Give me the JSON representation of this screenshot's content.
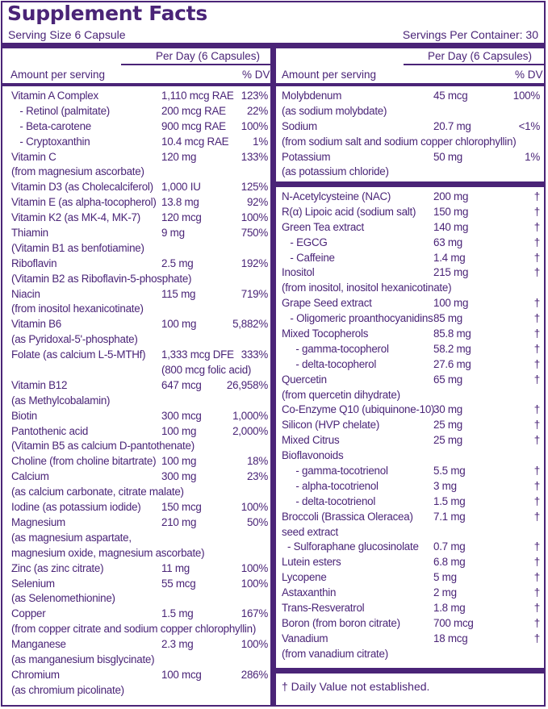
{
  "header": {
    "title": "Supplement Facts",
    "serving_size": "Serving Size 6 Capsule",
    "servings_per_container": "Servings Per Container: 30"
  },
  "columns": {
    "per_day": "Per Day (6 Capsules)",
    "amount_per_serving": "Amount per serving",
    "dv": "% DV"
  },
  "left_rows": [
    {
      "name": "Vitamin A Complex",
      "amount": "1,110 mcg RAE",
      "dv": "123%"
    },
    {
      "name": "   - Retinol (palmitate)",
      "amount": "200 mcg RAE",
      "dv": "22%"
    },
    {
      "name": "   - Beta-carotene",
      "amount": "900 mcg RAE",
      "dv": "100%"
    },
    {
      "name": "   - Cryptoxanthin",
      "amount": "10.4 mcg RAE",
      "dv": "1%"
    },
    {
      "name": "Vitamin C",
      "amount": "120 mg",
      "dv": "133%"
    },
    {
      "name": "(from magnesium ascorbate)",
      "amount": "",
      "dv": ""
    },
    {
      "name": "Vitamin D3 (as Cholecalciferol)",
      "amount": "1,000 IU",
      "dv": "125%"
    },
    {
      "name": "Vitamin E (as alpha-tocopherol)",
      "amount": "13.8 mg",
      "dv": "92%"
    },
    {
      "name": "Vitamin K2 (as MK-4, MK-7)",
      "amount": "120 mcg",
      "dv": "100%"
    },
    {
      "name": "Thiamin",
      "amount": "9 mg",
      "dv": "750%"
    },
    {
      "name": "(Vitamin B1 as benfotiamine)",
      "amount": "",
      "dv": ""
    },
    {
      "name": "Riboflavin",
      "amount": "2.5 mg",
      "dv": "192%"
    },
    {
      "name": "(Vitamin B2 as Riboflavin-5-phosphate)",
      "amount": "",
      "dv": ""
    },
    {
      "name": "Niacin",
      "amount": "115 mg",
      "dv": "719%"
    },
    {
      "name": "(from inositol hexanicotinate)",
      "amount": "",
      "dv": ""
    },
    {
      "name": "Vitamin B6",
      "amount": "100 mg",
      "dv": "5,882%"
    },
    {
      "name": "(as Pyridoxal-5'-phosphate)",
      "amount": "",
      "dv": ""
    },
    {
      "name": "Folate (as calcium L-5-MTHf)",
      "amount": "1,333 mcg DFE",
      "dv": "333%"
    },
    {
      "name": "",
      "amount": "(800 mcg folic acid)",
      "dv": ""
    },
    {
      "name": "Vitamin B12",
      "amount": "647 mcg",
      "dv": "26,958%"
    },
    {
      "name": "(as Methylcobalamin)",
      "amount": "",
      "dv": ""
    },
    {
      "name": "Biotin",
      "amount": "300 mcg",
      "dv": "1,000%"
    },
    {
      "name": "Pantothenic acid",
      "amount": "100 mg",
      "dv": "2,000%"
    },
    {
      "name": "(Vitamin B5 as calcium D-pantothenate)",
      "amount": "",
      "dv": ""
    },
    {
      "name": "Choline (from choline bitartrate)",
      "amount": "100 mg",
      "dv": "18%"
    },
    {
      "name": "Calcium",
      "amount": "300 mg",
      "dv": "23%"
    },
    {
      "name": "(as calcium carbonate, citrate malate)",
      "amount": "",
      "dv": ""
    },
    {
      "name": "Iodine (as potassium iodide)",
      "amount": "150 mcg",
      "dv": "100%"
    },
    {
      "name": "Magnesium",
      "amount": "210 mg",
      "dv": "50%"
    },
    {
      "name": "(as magnesium aspartate,",
      "amount": "",
      "dv": ""
    },
    {
      "name": "magnesium oxide, magnesium ascorbate)",
      "amount": "",
      "dv": ""
    },
    {
      "name": "Zinc (as zinc citrate)",
      "amount": "11 mg",
      "dv": "100%"
    },
    {
      "name": "Selenium",
      "amount": "55 mcg",
      "dv": "100%"
    },
    {
      "name": "(as Selenomethionine)",
      "amount": "",
      "dv": ""
    },
    {
      "name": "Copper",
      "amount": "1.5 mg",
      "dv": "167%"
    },
    {
      "name": "(from copper citrate and sodium copper chlorophyllin)",
      "amount": "",
      "dv": ""
    },
    {
      "name": "Manganese",
      "amount": "2.3 mg",
      "dv": "100%"
    },
    {
      "name": "(as manganesium bisglycinate)",
      "amount": "",
      "dv": ""
    },
    {
      "name": "Chromium",
      "amount": "100 mcg",
      "dv": "286%"
    },
    {
      "name": "(as chromium picolinate)",
      "amount": "",
      "dv": ""
    }
  ],
  "right_top_rows": [
    {
      "name": "Molybdenum",
      "amount": "45 mcg",
      "dv": "100%"
    },
    {
      "name": "(as sodium molybdate)",
      "amount": "",
      "dv": ""
    },
    {
      "name": "Sodium",
      "amount": "20.7 mg",
      "dv": "<1%"
    },
    {
      "name": "(from sodium salt and sodium copper chlorophyllin)",
      "amount": "",
      "dv": ""
    },
    {
      "name": "Potassium",
      "amount": "50 mg",
      "dv": "1%"
    },
    {
      "name": "(as potassium chloride)",
      "amount": "",
      "dv": ""
    }
  ],
  "right_bottom_rows": [
    {
      "name": "N-Acetylcysteine (NAC)",
      "amount": "200 mg",
      "dv": "†"
    },
    {
      "name": "R(α) Lipoic acid (sodium salt)",
      "amount": "150 mg",
      "dv": "†"
    },
    {
      "name": "Green Tea extract",
      "amount": "140 mg",
      "dv": "†"
    },
    {
      "name": "   - EGCG",
      "amount": "63 mg",
      "dv": "†"
    },
    {
      "name": "   - Caffeine",
      "amount": "1.4 mg",
      "dv": "†"
    },
    {
      "name": "Inositol",
      "amount": "215 mg",
      "dv": "†"
    },
    {
      "name": "(from inositol, inositol hexanicotinate)",
      "amount": "",
      "dv": ""
    },
    {
      "name": "Grape Seed extract",
      "amount": "100 mg",
      "dv": "†"
    },
    {
      "name": "   - Oligomeric proanthocyanidins",
      "amount": "85 mg",
      "dv": "†"
    },
    {
      "name": "Mixed Tocopherols",
      "amount": "85.8 mg",
      "dv": "†"
    },
    {
      "name": "     - gamma-tocopherol",
      "amount": "58.2 mg",
      "dv": "†"
    },
    {
      "name": "     - delta-tocopherol",
      "amount": "27.6 mg",
      "dv": "†"
    },
    {
      "name": "Quercetin",
      "amount": "65 mg",
      "dv": "†"
    },
    {
      "name": "(from quercetin dihydrate)",
      "amount": "",
      "dv": ""
    },
    {
      "name": "Co-Enzyme Q10 (ubiquinone-10)",
      "amount": "30 mg",
      "dv": "†"
    },
    {
      "name": "Silicon (HVP chelate)",
      "amount": "25 mg",
      "dv": "†"
    },
    {
      "name": "Mixed Citrus",
      "amount": "25 mg",
      "dv": "†"
    },
    {
      "name": "Bioflavonoids",
      "amount": "",
      "dv": ""
    },
    {
      "name": "     - gamma-tocotrienol",
      "amount": "5.5 mg",
      "dv": "†"
    },
    {
      "name": "     - alpha-tocotrienol",
      "amount": "3 mg",
      "dv": "†"
    },
    {
      "name": "     - delta-tocotrienol",
      "amount": "1.5 mg",
      "dv": "†"
    },
    {
      "name": "Broccoli (Brassica Oleracea)",
      "amount": "7.1 mg",
      "dv": "†"
    },
    {
      "name": "seed extract",
      "amount": "",
      "dv": ""
    },
    {
      "name": "  - Sulforaphane glucosinolate",
      "amount": "0.7 mg",
      "dv": "†"
    },
    {
      "name": "Lutein esters",
      "amount": "6.8 mg",
      "dv": "†"
    },
    {
      "name": "Lycopene",
      "amount": "5 mg",
      "dv": "†"
    },
    {
      "name": "Astaxanthin",
      "amount": "2 mg",
      "dv": "†"
    },
    {
      "name": "Trans-Resveratrol",
      "amount": "1.8 mg",
      "dv": "†"
    },
    {
      "name": "Boron (from boron citrate)",
      "amount": "700 mcg",
      "dv": "†"
    },
    {
      "name": "Vanadium",
      "amount": "18 mcg",
      "dv": "†"
    },
    {
      "name": "(from vanadium citrate)",
      "amount": "",
      "dv": ""
    }
  ],
  "footnote": "† Daily Value not established.",
  "colors": {
    "text": "#4a2477",
    "background": "#ffffff"
  }
}
